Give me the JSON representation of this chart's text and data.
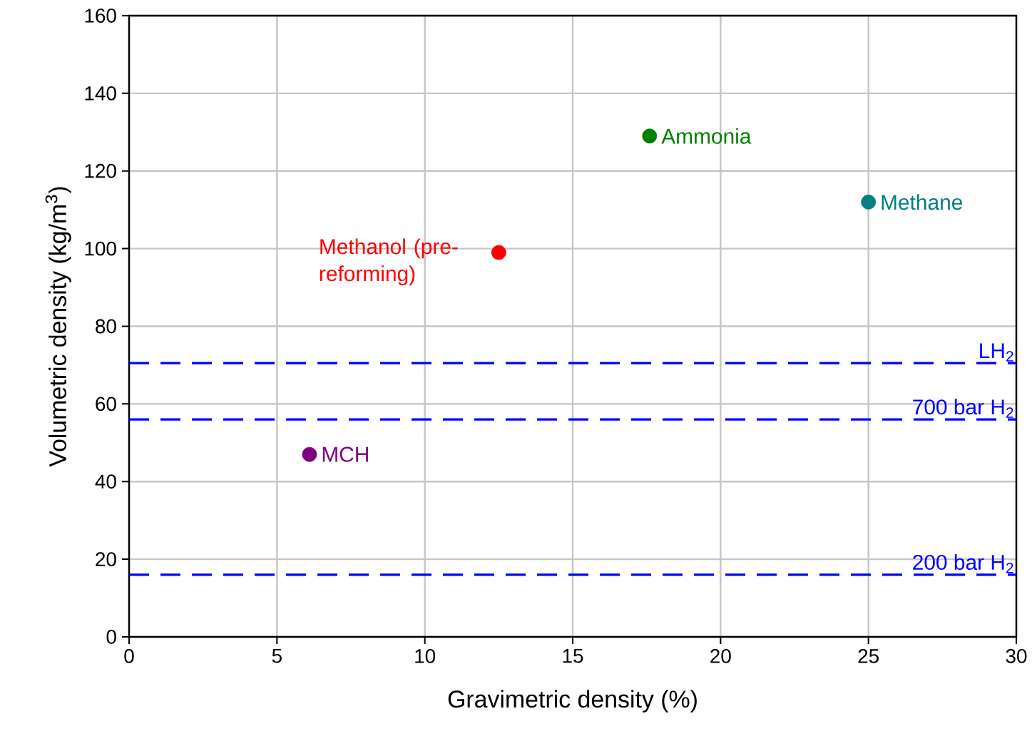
{
  "chart_data": {
    "type": "scatter",
    "xlabel": "Gravimetric density (%)",
    "ylabel": "Volumetric density (kg/m$^{3}$)",
    "xlim": [
      0,
      30
    ],
    "ylim": [
      0,
      160
    ],
    "xticks": [
      0,
      5,
      10,
      15,
      20,
      25,
      30
    ],
    "yticks": [
      0,
      20,
      40,
      60,
      80,
      100,
      120,
      140,
      160
    ],
    "grid": true,
    "marker": "circle",
    "series": [
      {
        "name": "Ammonia",
        "color": "#008000",
        "x": [
          17.6
        ],
        "values": [
          129
        ]
      },
      {
        "name": "Methane",
        "color": "#008080",
        "x": [
          25
        ],
        "values": [
          112
        ]
      },
      {
        "name": "Methanol (pre-reforming)",
        "color": "#ff0000",
        "x": [
          12.5
        ],
        "values": [
          99
        ]
      },
      {
        "name": "MCH",
        "color": "#800080",
        "x": [
          6.1
        ],
        "values": [
          47
        ]
      }
    ],
    "ref_lines": [
      {
        "axis": "y",
        "value": 70.5,
        "label": "LH$_{2}$",
        "color": "#0000ff",
        "line_style": "dashed"
      },
      {
        "axis": "y",
        "value": 56,
        "label": "700 bar H$_{2}$",
        "color": "#0000ff",
        "line_style": "dashed"
      },
      {
        "axis": "y",
        "value": 16,
        "label": "200 bar H$_{2}$",
        "color": "#0000ff",
        "line_style": "dashed"
      }
    ]
  }
}
